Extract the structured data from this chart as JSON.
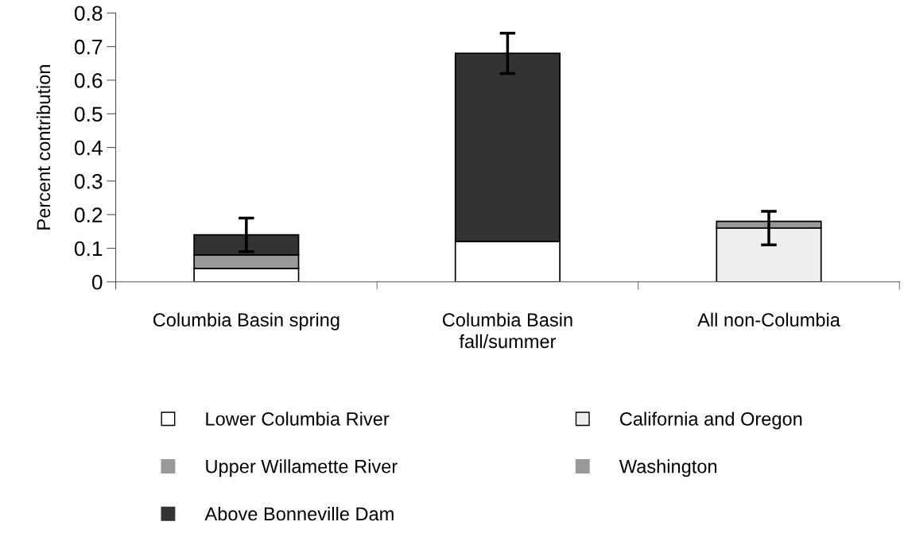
{
  "chart_data": {
    "type": "bar",
    "stacked": true,
    "ylabel": "Percent contribution",
    "categories": [
      "Columbia Basin spring",
      "Columbia Basin\nfall/summer",
      "All non-Columbia"
    ],
    "series": [
      {
        "name": "Lower Columbia River",
        "color": "#ffffff",
        "values": [
          0.04,
          0.12,
          null
        ]
      },
      {
        "name": "Upper Willamette River",
        "color": "#999999",
        "values": [
          0.04,
          null,
          null
        ]
      },
      {
        "name": "Above Bonneville Dam",
        "color": "#333333",
        "values": [
          0.06,
          0.56,
          null
        ],
        "errors": [
          [
            0.09,
            0.19
          ],
          [
            0.62,
            0.74
          ],
          null
        ]
      },
      {
        "name": "California and Oregon",
        "color": "#eeeeee",
        "values": [
          null,
          null,
          0.16
        ]
      },
      {
        "name": "Washington",
        "color": "#999999",
        "values": [
          null,
          null,
          0.02
        ],
        "errors": [
          null,
          null,
          [
            0.11,
            0.21
          ]
        ]
      }
    ],
    "ylim": [
      0,
      0.8
    ],
    "yticks": [
      0,
      0.1,
      0.2,
      0.3,
      0.4,
      0.5,
      0.6,
      0.7,
      0.8
    ],
    "grid": false,
    "legend": "bottom"
  }
}
